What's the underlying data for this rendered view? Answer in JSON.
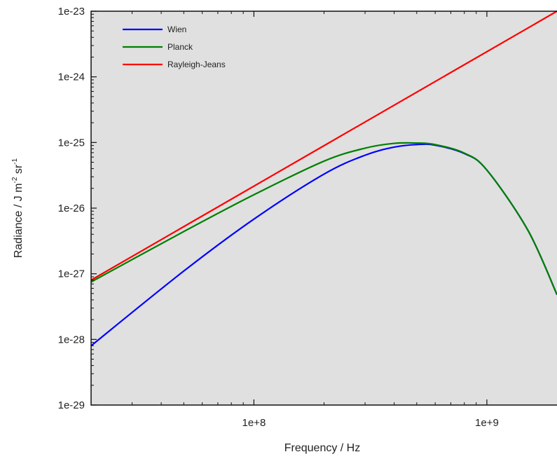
{
  "chart_data": {
    "type": "line",
    "xlabel": "Frequency / Hz",
    "ylabel": "Radiance / J m -2 sr -1",
    "ylabel_parts": {
      "main": "Radiance / J m",
      "exp1": "-2",
      "mid": " sr",
      "exp2": "-1"
    },
    "x_scale": "log",
    "y_scale": "log",
    "xlim": [
      20000000,
      2000000000
    ],
    "ylim": [
      1e-29,
      1e-23
    ],
    "x_ticks": [
      {
        "value": 100000000,
        "label": "1e+8"
      },
      {
        "value": 1000000000,
        "label": "1e+9"
      }
    ],
    "y_ticks": [
      {
        "value": 1e-29,
        "label": "1e-29"
      },
      {
        "value": 1e-28,
        "label": "1e-28"
      },
      {
        "value": 1e-27,
        "label": "1e-27"
      },
      {
        "value": 1e-26,
        "label": "1e-26"
      },
      {
        "value": 1e-25,
        "label": "1e-25"
      },
      {
        "value": 1e-24,
        "label": "1e-24"
      },
      {
        "value": 1e-23,
        "label": "1e-23"
      }
    ],
    "legend_position": "top-left",
    "grid": false,
    "series": [
      {
        "name": "Wien",
        "color": "#0000ff",
        "x": [
          20000000,
          50000000,
          100000000,
          200000000,
          300000000,
          400000000,
          500000000,
          600000000,
          800000000,
          1000000000,
          1500000000,
          2000000000
        ],
        "y": [
          8e-29,
          1.1e-27,
          6.8e-27,
          3.3e-26,
          6.4e-26,
          8.5e-26,
          9.3e-26,
          9.1e-26,
          6.8e-26,
          3.8e-26,
          4.6e-27,
          4.8e-28
        ]
      },
      {
        "name": "Planck",
        "color": "#008000",
        "x": [
          20000000,
          50000000,
          100000000,
          200000000,
          300000000,
          400000000,
          500000000,
          600000000,
          800000000,
          1000000000,
          1500000000,
          2000000000
        ],
        "y": [
          7.5e-28,
          4.4e-27,
          1.6e-26,
          5.2e-26,
          8.2e-26,
          9.7e-26,
          9.8e-26,
          9.3e-26,
          6.9e-26,
          3.8e-26,
          4.6e-27,
          4.8e-28
        ]
      },
      {
        "name": "Rayleigh-Jeans",
        "color": "#ff0000",
        "x": [
          20000000,
          2000000000
        ],
        "y": [
          8e-28,
          1e-23
        ]
      }
    ]
  }
}
